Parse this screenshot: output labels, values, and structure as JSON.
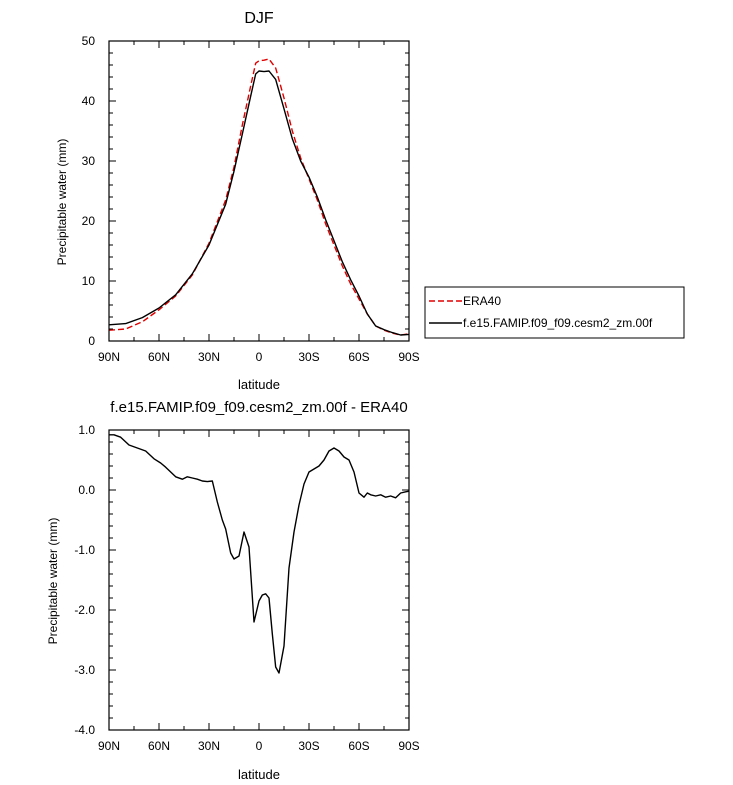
{
  "chart_data": [
    {
      "type": "line",
      "title": "DJF",
      "xlabel": "latitude",
      "ylabel": "Precipitable water (mm)",
      "xlim": [
        90,
        -90
      ],
      "ylim": [
        0,
        50
      ],
      "xticks": [
        90,
        60,
        30,
        0,
        -30,
        -60,
        -90
      ],
      "xtick_labels": [
        "90N",
        "60N",
        "30N",
        "0",
        "30S",
        "60S",
        "90S"
      ],
      "yticks": [
        0,
        10,
        20,
        30,
        40,
        50
      ],
      "ytick_labels": [
        "0",
        "10",
        "20",
        "30",
        "40",
        "50"
      ],
      "grid": false,
      "legend_position": "right",
      "series": [
        {
          "name": "ERA40",
          "color": "#e00000",
          "dash": "dashed",
          "x": [
            90,
            80,
            70,
            60,
            50,
            40,
            30,
            20,
            15,
            10,
            5,
            2,
            0,
            -3,
            -6,
            -10,
            -15,
            -20,
            -25,
            -30,
            -35,
            -40,
            -45,
            -50,
            -55,
            -60,
            -65,
            -70,
            -75,
            -80,
            -85,
            -90
          ],
          "y": [
            1.8,
            2.0,
            3.2,
            5.2,
            7.5,
            11.0,
            16.3,
            23.5,
            29.0,
            36.0,
            42.5,
            46.3,
            46.7,
            46.8,
            47.0,
            45.5,
            40.5,
            35.0,
            30.5,
            27.0,
            23.5,
            19.5,
            16.0,
            12.5,
            9.5,
            7.0,
            4.5,
            2.5,
            1.8,
            1.3,
            1.0,
            1.2
          ]
        },
        {
          "name": "f.e15.FAMIP.f09_f09.cesm2_zm.00f",
          "color": "#000000",
          "dash": "solid",
          "x": [
            90,
            80,
            70,
            60,
            50,
            40,
            30,
            20,
            15,
            10,
            5,
            2,
            0,
            -3,
            -6,
            -10,
            -15,
            -20,
            -25,
            -30,
            -35,
            -40,
            -45,
            -50,
            -55,
            -60,
            -65,
            -70,
            -75,
            -80,
            -85,
            -90
          ],
          "y": [
            2.7,
            2.9,
            3.9,
            5.5,
            7.7,
            11.2,
            16.0,
            22.8,
            28.3,
            34.5,
            40.8,
            44.5,
            45.0,
            44.9,
            45.0,
            43.6,
            38.7,
            33.7,
            30.0,
            27.3,
            24.0,
            20.2,
            16.7,
            13.2,
            10.2,
            7.5,
            4.5,
            2.5,
            1.9,
            1.4,
            1.0,
            1.1
          ]
        }
      ]
    },
    {
      "type": "line",
      "title": "f.e15.FAMIP.f09_f09.cesm2_zm.00f - ERA40",
      "xlabel": "latitude",
      "ylabel": "Precipitable water (mm)",
      "xlim": [
        90,
        -90
      ],
      "ylim": [
        -4.0,
        1.0
      ],
      "xticks": [
        90,
        60,
        30,
        0,
        -30,
        -60,
        -90
      ],
      "xtick_labels": [
        "90N",
        "60N",
        "30N",
        "0",
        "30S",
        "60S",
        "90S"
      ],
      "yticks": [
        -4.0,
        -3.0,
        -2.0,
        -1.0,
        0.0,
        1.0
      ],
      "ytick_labels": [
        "-4.0",
        "-3.0",
        "-2.0",
        "-1.0",
        "0.0",
        "1.0"
      ],
      "grid": false,
      "series": [
        {
          "color": "#000000",
          "dash": "solid",
          "x": [
            90,
            87,
            83,
            78,
            73,
            68,
            63,
            59,
            56,
            53,
            50,
            46,
            43,
            40,
            37,
            34,
            31,
            28,
            25,
            22,
            20,
            17,
            15,
            12,
            9,
            6,
            3,
            0,
            -2,
            -4,
            -6,
            -8,
            -10,
            -12,
            -15,
            -18,
            -21,
            -24,
            -27,
            -30,
            -33,
            -36,
            -39,
            -42,
            -45,
            -48,
            -51,
            -54,
            -57,
            -60,
            -63,
            -65,
            -67,
            -70,
            -73,
            -76,
            -79,
            -82,
            -85,
            -88,
            -90
          ],
          "y": [
            0.92,
            0.92,
            0.88,
            0.75,
            0.7,
            0.65,
            0.52,
            0.45,
            0.38,
            0.3,
            0.22,
            0.18,
            0.22,
            0.2,
            0.18,
            0.15,
            0.14,
            0.15,
            -0.2,
            -0.5,
            -0.65,
            -1.05,
            -1.15,
            -1.1,
            -0.7,
            -0.95,
            -2.2,
            -1.85,
            -1.75,
            -1.73,
            -1.8,
            -2.4,
            -2.95,
            -3.05,
            -2.6,
            -1.3,
            -0.7,
            -0.25,
            0.1,
            0.3,
            0.35,
            0.4,
            0.5,
            0.65,
            0.7,
            0.65,
            0.55,
            0.5,
            0.3,
            -0.05,
            -0.12,
            -0.05,
            -0.08,
            -0.1,
            -0.08,
            -0.12,
            -0.1,
            -0.13,
            -0.05,
            -0.03,
            -0.02
          ]
        }
      ]
    }
  ]
}
